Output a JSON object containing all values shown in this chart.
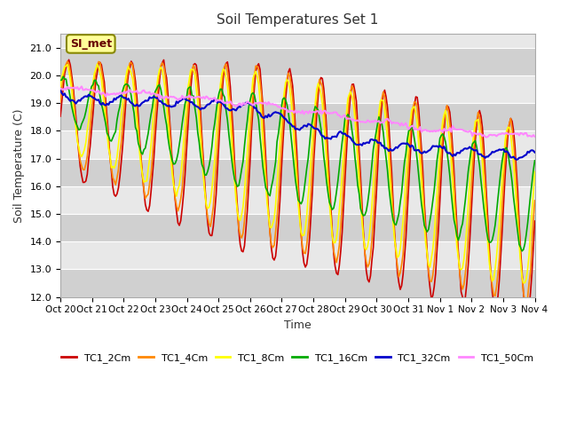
{
  "title": "Soil Temperatures Set 1",
  "xlabel": "Time",
  "ylabel": "Soil Temperature (C)",
  "ylim": [
    12.0,
    21.5
  ],
  "yticks": [
    12.0,
    13.0,
    14.0,
    15.0,
    16.0,
    17.0,
    18.0,
    19.0,
    20.0,
    21.0
  ],
  "xtick_labels": [
    "Oct 20",
    "Oct 21",
    "Oct 22",
    "Oct 23",
    "Oct 24",
    "Oct 25",
    "Oct 26",
    "Oct 27",
    "Oct 28",
    "Oct 29",
    "Oct 30",
    "Oct 31",
    "Nov 1",
    "Nov 2",
    "Nov 3",
    "Nov 4"
  ],
  "legend_labels": [
    "TC1_2Cm",
    "TC1_4Cm",
    "TC1_8Cm",
    "TC1_16Cm",
    "TC1_32Cm",
    "TC1_50Cm"
  ],
  "line_colors": [
    "#cc0000",
    "#ff8800",
    "#ffff00",
    "#00aa00",
    "#0000cc",
    "#ff88ff"
  ],
  "annotation_text": "SI_met",
  "plot_bg_color": "#e8e8e8",
  "band_dark": "#d0d0d0",
  "band_light": "#e8e8e8",
  "n_points": 336,
  "days": 15
}
